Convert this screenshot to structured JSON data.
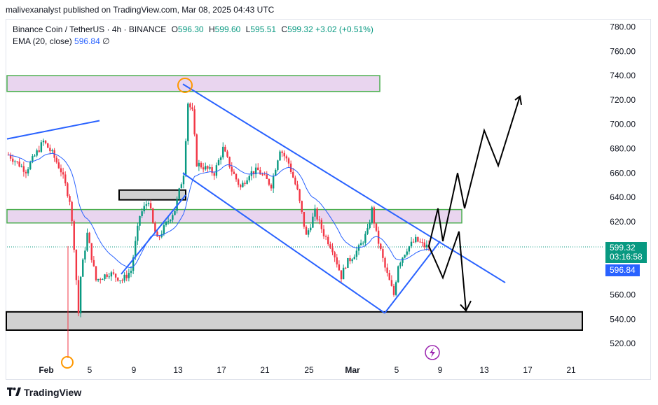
{
  "publisher": "malivexanalyst published on TradingView.com, Mar 08, 2025 04:43 UTC",
  "legend": {
    "symbol": "Binance Coin / TetherUS · 4h · BINANCE",
    "o_label": "O",
    "o": "596.30",
    "h_label": "H",
    "h": "599.60",
    "l_label": "L",
    "l": "595.51",
    "c_label": "C",
    "c": "599.32",
    "change": "+3.02 (+0.51%)",
    "ema_label": "EMA (20, close)",
    "ema_value": "596.84",
    "ema_suffix": "∅"
  },
  "price_tags": {
    "last": "599.32",
    "countdown": "03:16:58",
    "ema": "596.84"
  },
  "footer": {
    "brand": "TradingView",
    "logo": "tv-logo-icon"
  },
  "colors": {
    "up": "#089981",
    "down": "#f23645",
    "ema": "#2962ff",
    "zone_fill": "#e9d5ef",
    "zone_border": "#4caf50",
    "box_fill": "#d1d1d1",
    "box_border": "#000000",
    "trend": "#2962ff",
    "projection": "#000000",
    "highlight": "#ff9800"
  },
  "chart_data": {
    "type": "candlestick",
    "timeframe": "4h",
    "y_axis": {
      "ylim": [
        508,
        786
      ],
      "ticks": [
        520,
        540,
        560,
        580,
        600,
        620,
        640,
        660,
        680,
        700,
        720,
        740,
        760,
        780
      ]
    },
    "x_axis": {
      "labels": [
        "Feb",
        "5",
        "9",
        "13",
        "17",
        "21",
        "25",
        "Mar",
        "5",
        "9",
        "13",
        "17",
        "21"
      ]
    },
    "price_path": [
      [
        0,
        675
      ],
      [
        4,
        662
      ],
      [
        8,
        686
      ],
      [
        10,
        676
      ],
      [
        12,
        662
      ],
      [
        14,
        638
      ],
      [
        15,
        600
      ],
      [
        16,
        545
      ],
      [
        16.5,
        575
      ],
      [
        18,
        610
      ],
      [
        20,
        572
      ],
      [
        23,
        578
      ],
      [
        26,
        572
      ],
      [
        28,
        580
      ],
      [
        30,
        625
      ],
      [
        32,
        638
      ],
      [
        33,
        618
      ],
      [
        34,
        605
      ],
      [
        36,
        618
      ],
      [
        38,
        630
      ],
      [
        40,
        660
      ],
      [
        41,
        718
      ],
      [
        42,
        710
      ],
      [
        43,
        668
      ],
      [
        45,
        664
      ],
      [
        47,
        660
      ],
      [
        49,
        680
      ],
      [
        51,
        662
      ],
      [
        53,
        648
      ],
      [
        55,
        660
      ],
      [
        57,
        662
      ],
      [
        60,
        650
      ],
      [
        62,
        680
      ],
      [
        64,
        668
      ],
      [
        66,
        645
      ],
      [
        68,
        608
      ],
      [
        69,
        618
      ],
      [
        70,
        628
      ],
      [
        72,
        610
      ],
      [
        74,
        598
      ],
      [
        76,
        575
      ],
      [
        77,
        585
      ],
      [
        80,
        598
      ],
      [
        82,
        612
      ],
      [
        83,
        630
      ],
      [
        84,
        610
      ],
      [
        86,
        582
      ],
      [
        88,
        560
      ],
      [
        89,
        585
      ],
      [
        91,
        598
      ],
      [
        93,
        605
      ],
      [
        95,
        600
      ],
      [
        96,
        599.32
      ]
    ],
    "ema": {
      "name": "EMA (20, close)",
      "last": 596.84
    },
    "last_price": 599.32,
    "annotations": [
      {
        "kind": "zone",
        "from": 727,
        "to": 740,
        "color": "pink"
      },
      {
        "kind": "zone",
        "from": 619,
        "to": 630,
        "color": "pink"
      },
      {
        "kind": "zone",
        "from": 531,
        "to": 546,
        "color": "gray"
      },
      {
        "kind": "zone",
        "from": 638,
        "to": 646,
        "color": "gray"
      },
      {
        "kind": "descending-channel"
      },
      {
        "kind": "projection-up",
        "target": 723
      },
      {
        "kind": "projection-down",
        "target": 545
      }
    ]
  }
}
